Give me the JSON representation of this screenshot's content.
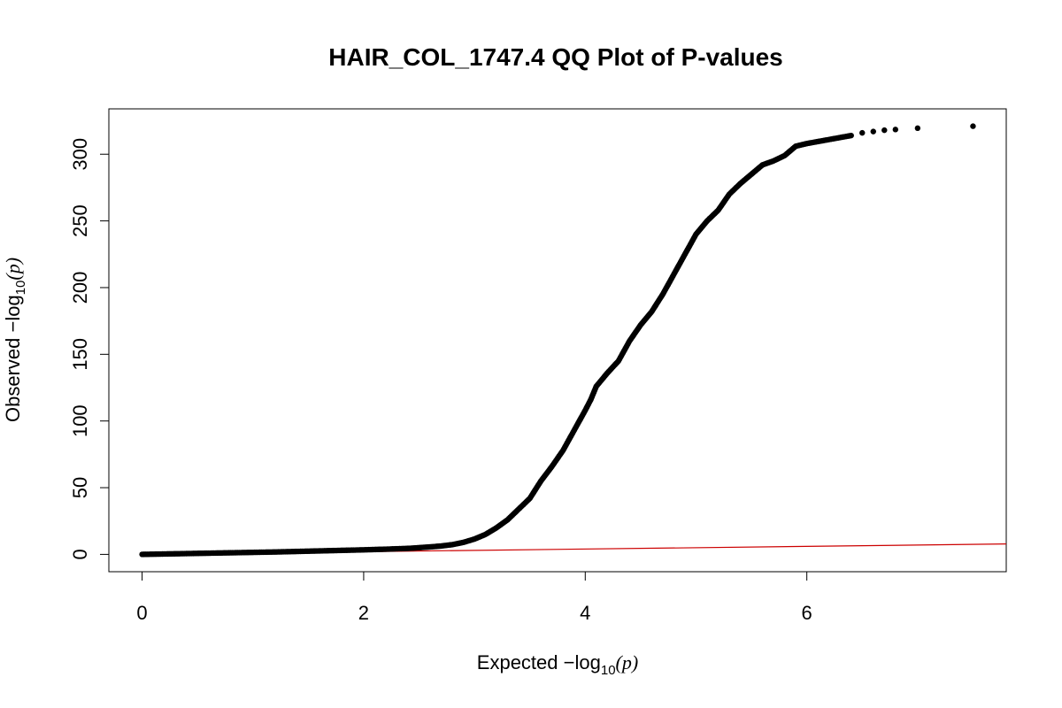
{
  "chart_data": {
    "type": "scatter",
    "title": "HAIR_COL_1747.4 QQ Plot of P-values",
    "xlabel": {
      "prefix": "Expected",
      "minus": "−",
      "log": "log",
      "sub": "10",
      "open": "(",
      "var": "p",
      "close": ")"
    },
    "ylabel": {
      "prefix": "Observed",
      "minus": "−",
      "log": "log",
      "sub": "10",
      "open": "(",
      "var": "p",
      "close": ")"
    },
    "xlim": [
      -0.3,
      7.8
    ],
    "ylim": [
      -13,
      334
    ],
    "x_ticks": [
      0,
      2,
      4,
      6
    ],
    "x_tick_labels": [
      "0",
      "2",
      "4",
      "6"
    ],
    "y_ticks": [
      0,
      50,
      100,
      150,
      200,
      250,
      300
    ],
    "y_tick_labels": [
      "0",
      "50",
      "100",
      "150",
      "200",
      "250",
      "300"
    ],
    "grid": false,
    "point_color": "#000000",
    "line_color": "#cc0000",
    "reference_line": {
      "x": [
        0,
        7.8
      ],
      "y": [
        0,
        7.8
      ]
    },
    "points": {
      "x": [
        0,
        0.2,
        0.4,
        0.6,
        0.8,
        1.0,
        1.2,
        1.4,
        1.6,
        1.8,
        2.0,
        2.2,
        2.4,
        2.5,
        2.6,
        2.7,
        2.8,
        2.9,
        3.0,
        3.1,
        3.2,
        3.3,
        3.4,
        3.5,
        3.6,
        3.7,
        3.8,
        3.9,
        4.0,
        4.05,
        4.1,
        4.2,
        4.3,
        4.4,
        4.5,
        4.6,
        4.7,
        4.8,
        4.9,
        5.0,
        5.1,
        5.2,
        5.3,
        5.4,
        5.5,
        5.6,
        5.7,
        5.8,
        5.9,
        6.0,
        6.2,
        6.4,
        6.5,
        6.6,
        6.7,
        6.8,
        7.0,
        7.5
      ],
      "y": [
        0,
        0.3,
        0.6,
        0.9,
        1.2,
        1.5,
        1.8,
        2.2,
        2.6,
        3.0,
        3.4,
        3.9,
        4.5,
        5.0,
        5.6,
        6.3,
        7.3,
        9.0,
        11.5,
        15.0,
        20.0,
        26.0,
        34.0,
        42.0,
        55.0,
        66.0,
        78.0,
        93.0,
        108.0,
        116.0,
        126.0,
        136.0,
        145.0,
        160.0,
        172.0,
        182.0,
        195.0,
        210.0,
        225.0,
        240.0,
        250.0,
        258.0,
        270.0,
        278.0,
        285.0,
        292.0,
        295.0,
        299.0,
        306.0,
        308.0,
        311.0,
        314.0,
        316.0,
        317.0,
        318.0,
        318.5,
        319.5,
        321.0
      ]
    }
  }
}
